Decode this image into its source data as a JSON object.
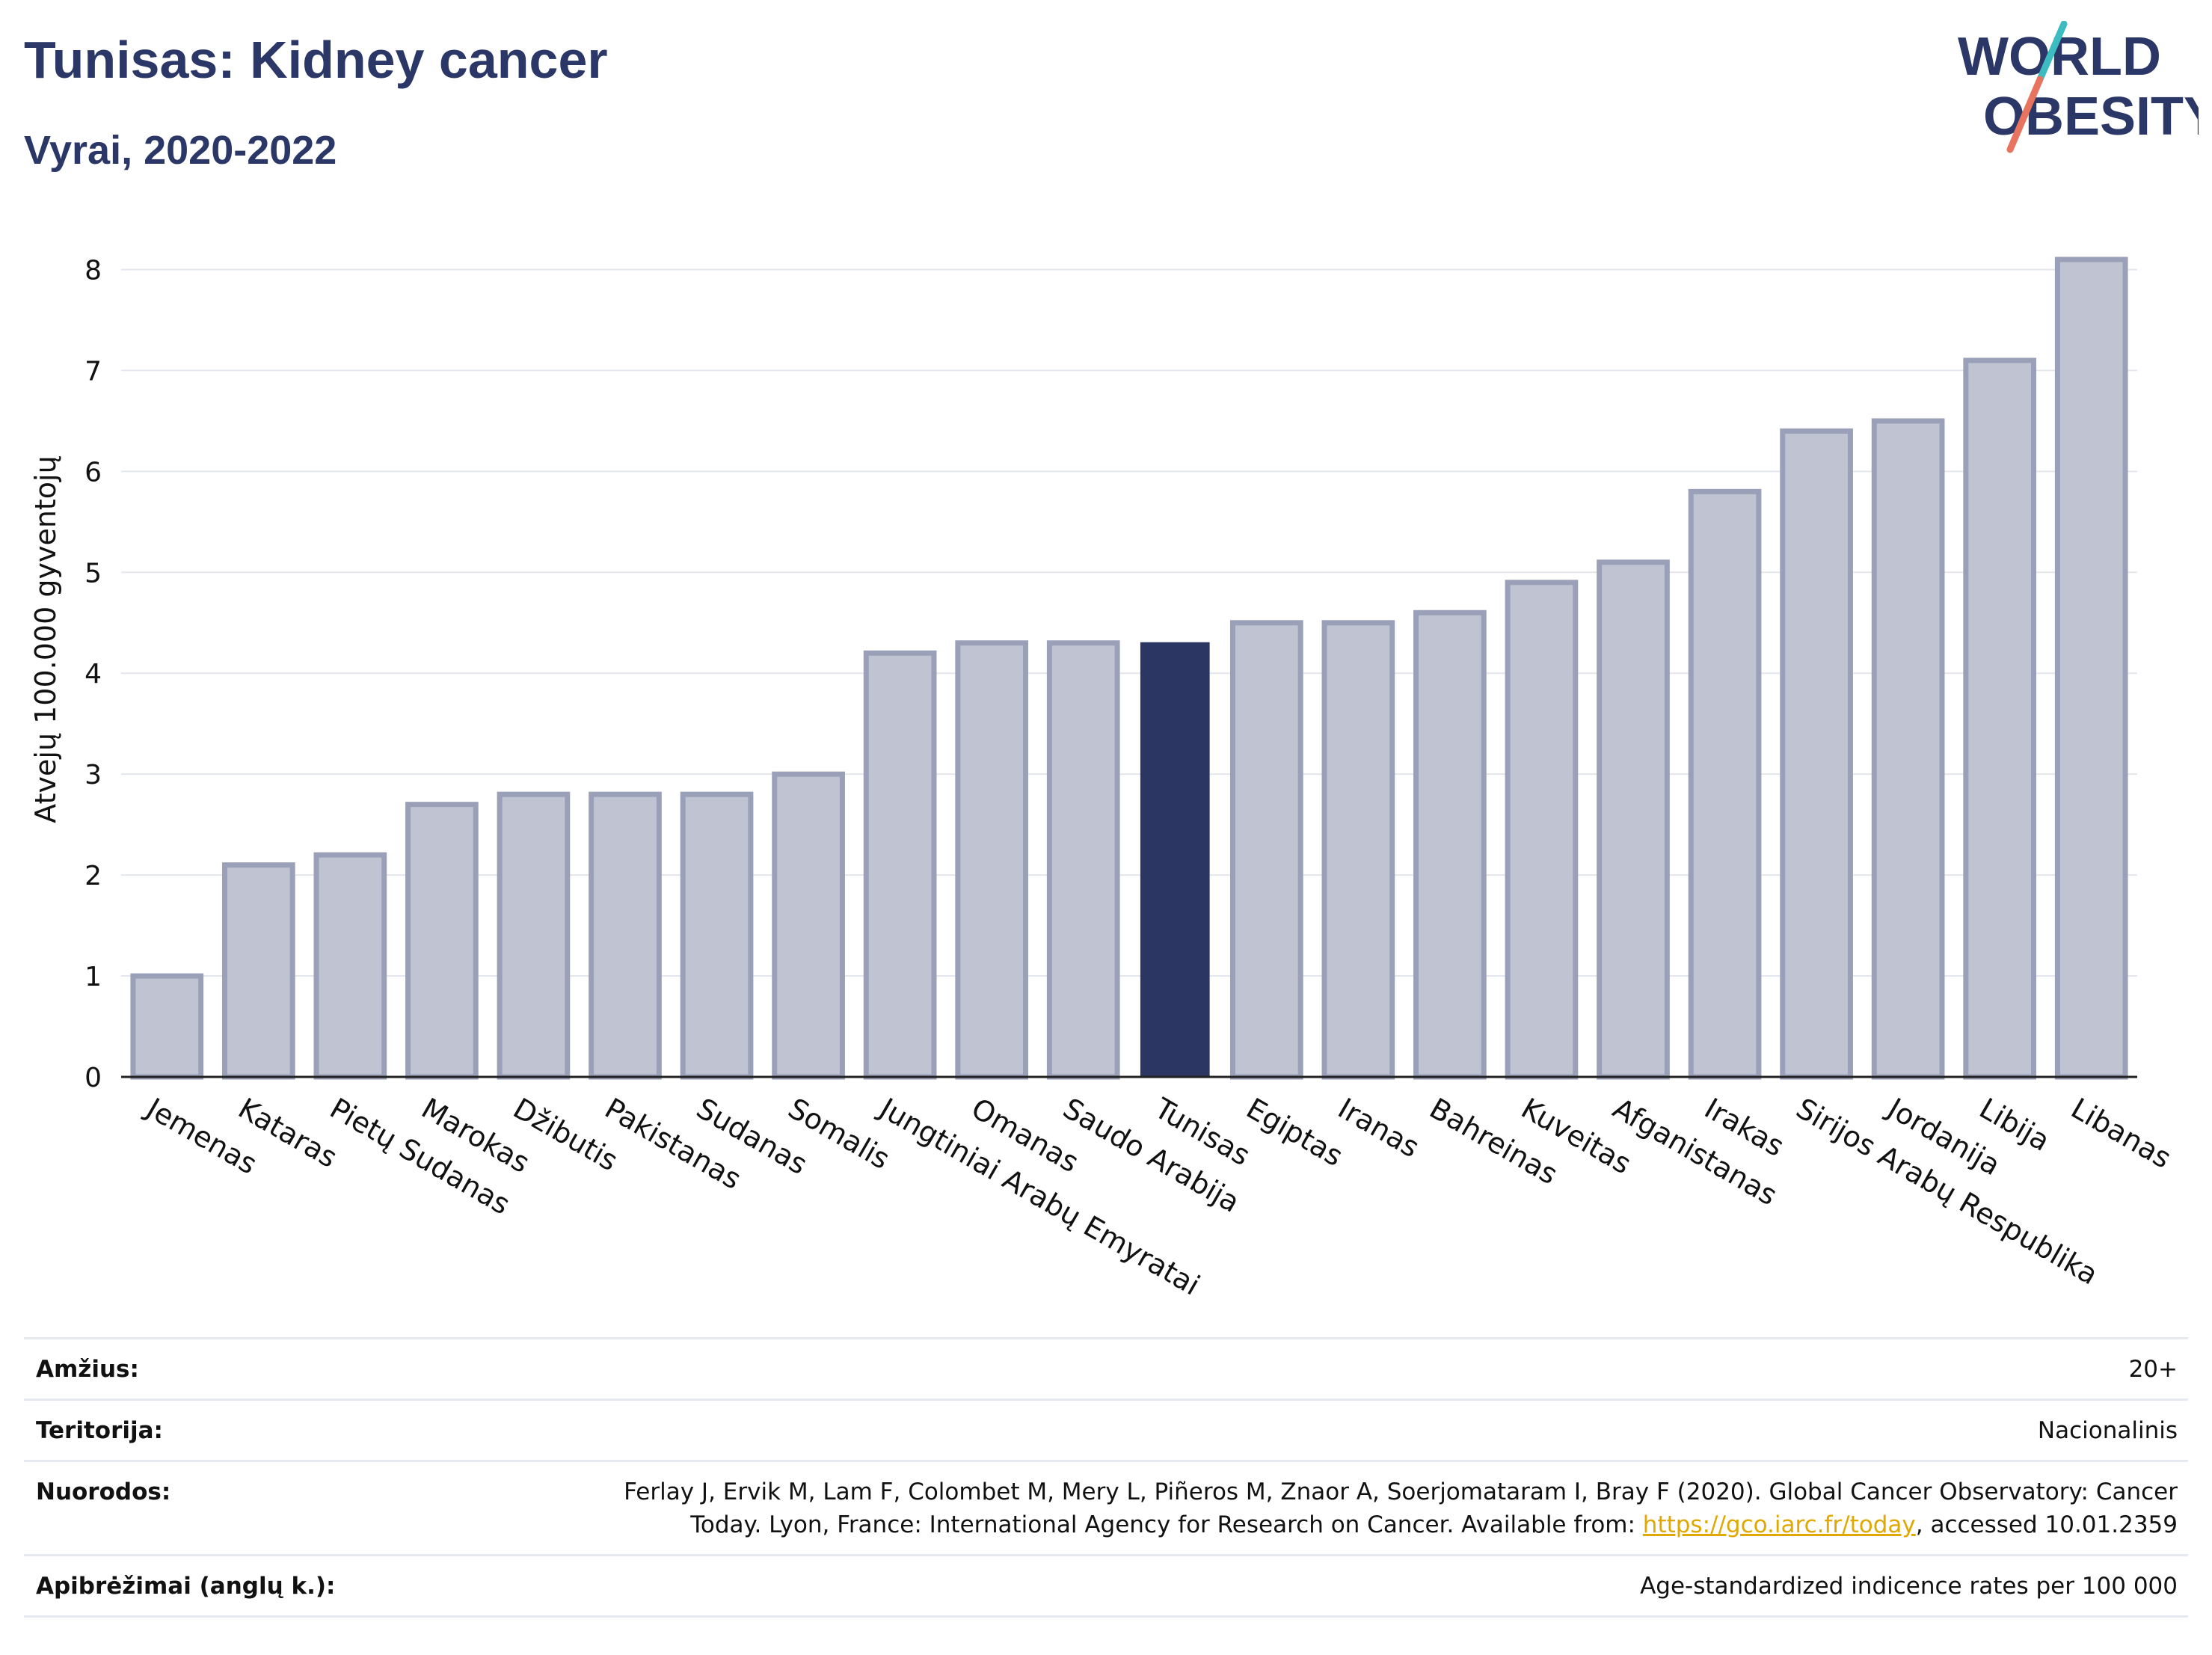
{
  "header": {
    "title": "Tunisas: Kidney cancer",
    "subtitle": "Vyrai, 2020-2022"
  },
  "logo": {
    "line1": "WORLD",
    "line2": "OBESITY",
    "accent_colors": [
      "#3cbcc0",
      "#e8735f"
    ]
  },
  "colors": {
    "bar": "#c0c4d2",
    "bar_border": "#9aa0b8",
    "highlight": "#2b3663",
    "grid": "#e3e6ec",
    "axis": "#222222"
  },
  "chart_data": {
    "type": "bar",
    "ylabel": "Atvejų 100.000 gyventojų",
    "ylim": [
      0,
      8.3
    ],
    "yticks": [
      "0",
      "1",
      "2",
      "3",
      "4",
      "5",
      "6",
      "7",
      "8"
    ],
    "highlight_index": 11,
    "categories": [
      "Jemenas",
      "Kataras",
      "Pietų Sudanas",
      "Marokas",
      "Džibutis",
      "Pakistanas",
      "Sudanas",
      "Somalis",
      "Jungtiniai Arabų Emyratai",
      "Omanas",
      "Saudo Arabija",
      "Tunisas",
      "Egiptas",
      "Iranas",
      "Bahreinas",
      "Kuveitas",
      "Afganistanas",
      "Irakas",
      "Sirijos Arabų Respublika",
      "Jordanija",
      "Libija",
      "Libanas"
    ],
    "values": [
      1.0,
      2.1,
      2.2,
      2.7,
      2.8,
      2.8,
      2.8,
      3.0,
      4.2,
      4.3,
      4.3,
      4.3,
      4.5,
      4.5,
      4.6,
      4.9,
      5.1,
      5.8,
      6.4,
      6.5,
      7.1,
      8.1
    ]
  },
  "info_table": {
    "age_label": "Amžius:",
    "age_value": "20+",
    "territory_label": "Teritorija:",
    "territory_value": "Nacionalinis",
    "references_label": "Nuorodos:",
    "references_line1": "Ferlay J, Ervik M, Lam F, Colombet M, Mery L, Piñeros M, Znaor A, Soerjomataram I, Bray F (2020). Global Cancer Observatory: Cancer",
    "references_line2_pre": "Today. Lyon, France: International Agency for Research on Cancer. Available from: ",
    "references_link": "https://gco.iarc.fr/today",
    "references_line2_post": ", accessed 10.01.2359",
    "definitions_label": "Apibrėžimai (anglų k.):",
    "definitions_value": "Age-standardized indicence rates per 100 000"
  }
}
